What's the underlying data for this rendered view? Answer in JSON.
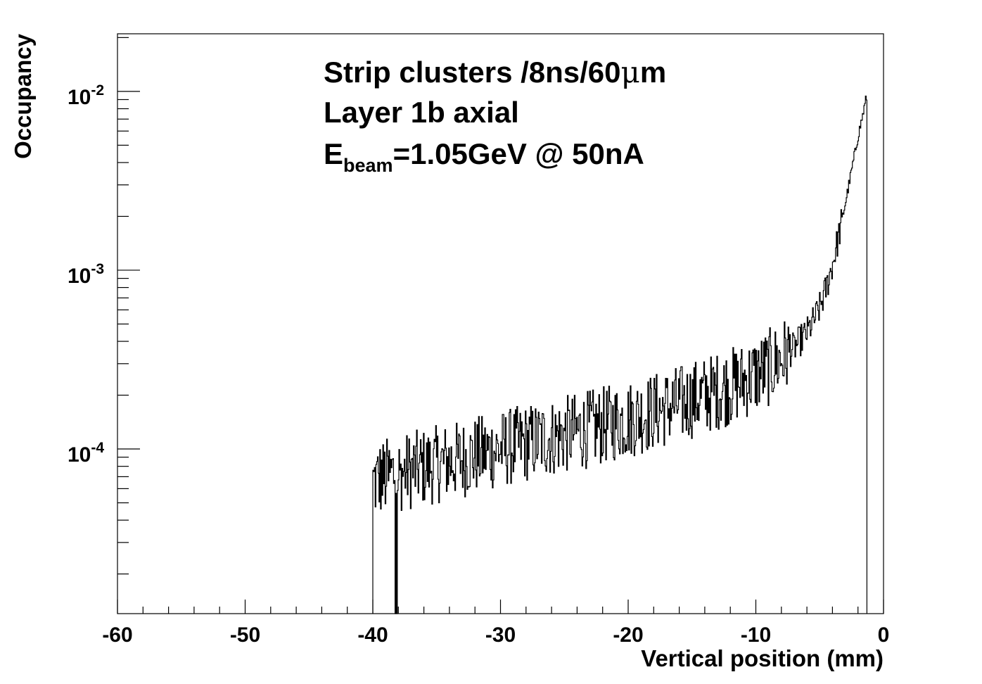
{
  "chart_data": {
    "type": "histogram",
    "annotations": [
      {
        "text": "Strip clusters /8ns/60",
        "symbol": "μ",
        "suffix": "m"
      },
      {
        "text": "Layer 1b axial"
      },
      {
        "main": "E",
        "sub": "beam",
        "rest": "=1.05GeV @ 50nA"
      }
    ],
    "xlabel": "Vertical position (mm)",
    "ylabel": "Occupancy",
    "xlim": [
      -60,
      0
    ],
    "ylim": [
      1.2e-05,
      0.021
    ],
    "yscale": "log",
    "grid": false,
    "legend": "none",
    "x_ticks": [
      {
        "value": -60,
        "label": "-60"
      },
      {
        "value": -50,
        "label": "-50"
      },
      {
        "value": -40,
        "label": "-40"
      },
      {
        "value": -30,
        "label": "-30"
      },
      {
        "value": -20,
        "label": "-20"
      },
      {
        "value": -10,
        "label": "-10"
      },
      {
        "value": 0,
        "label": "0"
      }
    ],
    "y_ticks": [
      {
        "value": 0.0001,
        "base": "10",
        "exp": "-4"
      },
      {
        "value": 0.001,
        "base": "10",
        "exp": "-3"
      },
      {
        "value": 0.01,
        "base": "10",
        "exp": "-2"
      }
    ],
    "bin_width": 0.06,
    "series": [
      {
        "color": "#000000",
        "x": [
          -40.0,
          -39.5,
          -39.0,
          -38.5,
          -38.0,
          -37.0,
          -36.0,
          -35.0,
          -34.0,
          -33.0,
          -32.0,
          -31.0,
          -30.0,
          -29.0,
          -28.0,
          -27.0,
          -26.0,
          -25.0,
          -24.0,
          -23.0,
          -22.0,
          -21.0,
          -20.0,
          -19.0,
          -18.0,
          -17.0,
          -16.0,
          -15.0,
          -14.0,
          -13.0,
          -12.0,
          -11.0,
          -10.0,
          -9.0,
          -8.0,
          -7.0,
          -6.0,
          -5.5,
          -5.0,
          -4.5,
          -4.0,
          -3.5,
          -3.0,
          -2.5,
          -2.0,
          -1.8,
          -1.6,
          -1.4,
          -1.3
        ],
        "y": [
          6.5e-05,
          6.8e-05,
          7e-05,
          7.2e-05,
          7.3e-05,
          7.6e-05,
          7.9e-05,
          8.2e-05,
          8.5e-05,
          8.8e-05,
          9.2e-05,
          9.6e-05,
          0.0001,
          0.000104,
          0.000108,
          0.000112,
          0.000116,
          0.00012,
          0.000125,
          0.00013,
          0.000135,
          0.000141,
          0.000147,
          0.000154,
          0.000162,
          0.00017,
          0.000179,
          0.000189,
          0.0002,
          0.000212,
          0.000225,
          0.00024,
          0.00026,
          0.000285,
          0.00032,
          0.00037,
          0.00045,
          0.00052,
          0.00062,
          0.0008,
          0.0011,
          0.0016,
          0.0024,
          0.0037,
          0.0057,
          0.0066,
          0.0077,
          0.009,
          0.0098
        ]
      }
    ]
  }
}
